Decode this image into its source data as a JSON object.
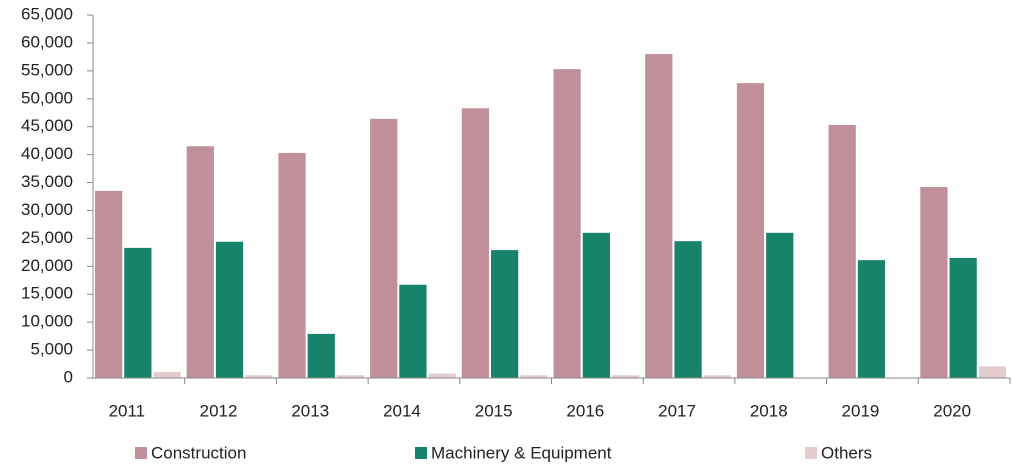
{
  "chart_data": {
    "type": "bar",
    "categories": [
      "2011",
      "2012",
      "2013",
      "2014",
      "2015",
      "2016",
      "2017",
      "2018",
      "2019",
      "2020"
    ],
    "series": [
      {
        "name": "Construction",
        "color": "#c0909a",
        "values": [
          33500,
          41500,
          40300,
          46400,
          48300,
          55300,
          58000,
          52800,
          45300,
          34200
        ]
      },
      {
        "name": "Machinery & Equipment",
        "color": "#18836b",
        "values": [
          23300,
          24400,
          7900,
          16700,
          22900,
          26000,
          24500,
          26000,
          21100,
          21500
        ]
      },
      {
        "name": "Others",
        "color": "#e3cccd",
        "values": [
          1100,
          500,
          500,
          800,
          500,
          500,
          500,
          100,
          100,
          2100
        ]
      }
    ],
    "ylim": [
      0,
      65000
    ],
    "yticks": [
      0,
      {
        "value": 5000,
        "label": "5,000"
      },
      {
        "value": 10000,
        "label": "10,000"
      },
      {
        "value": 15000,
        "label": "15,000"
      },
      {
        "value": 20000,
        "label": "20,000"
      },
      {
        "value": 25000,
        "label": "25,000"
      },
      {
        "value": 30000,
        "label": "30,000"
      },
      {
        "value": 35000,
        "label": "35,000"
      },
      {
        "value": 40000,
        "label": "40,000"
      },
      {
        "value": 45000,
        "label": "45,000"
      },
      {
        "value": 50000,
        "label": "50,000"
      },
      {
        "value": 55000,
        "label": "55,000"
      },
      {
        "value": 60000,
        "label": "60,000"
      },
      {
        "value": 65000,
        "label": "65,000"
      }
    ],
    "grid": false,
    "legend": "bottom"
  }
}
